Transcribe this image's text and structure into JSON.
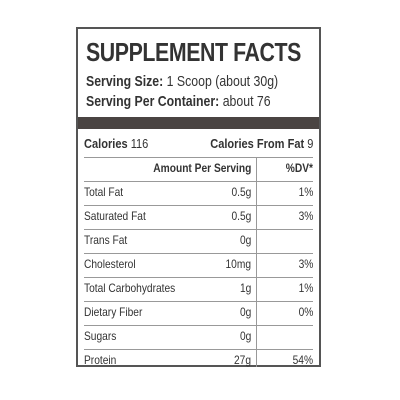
{
  "panel": {
    "title": "SUPPLEMENT FACTS",
    "serving_size_label": "Serving Size:",
    "serving_size_value": "1 Scoop (about 30g)",
    "per_container_label": "Serving Per Container:",
    "per_container_value": "about 76"
  },
  "calories": {
    "label": "Calories",
    "value": "116",
    "fat_label": "Calories From Fat",
    "fat_value": "9"
  },
  "columns": {
    "amount": "Amount Per Serving",
    "dv": "%DV*"
  },
  "rows": [
    {
      "name": "Total Fat",
      "amount": "0.5g",
      "dv": "1%"
    },
    {
      "name": "Saturated Fat",
      "amount": "0.5g",
      "dv": "3%"
    },
    {
      "name": "Trans Fat",
      "amount": "0g",
      "dv": ""
    },
    {
      "name": "Cholesterol",
      "amount": "10mg",
      "dv": "3%"
    },
    {
      "name": "Total Carbohydrates",
      "amount": "1g",
      "dv": "1%"
    },
    {
      "name": "Dietary Fiber",
      "amount": "0g",
      "dv": "0%"
    },
    {
      "name": "Sugars",
      "amount": "0g",
      "dv": ""
    },
    {
      "name": "Protein",
      "amount": "27g",
      "dv": "54%"
    }
  ]
}
